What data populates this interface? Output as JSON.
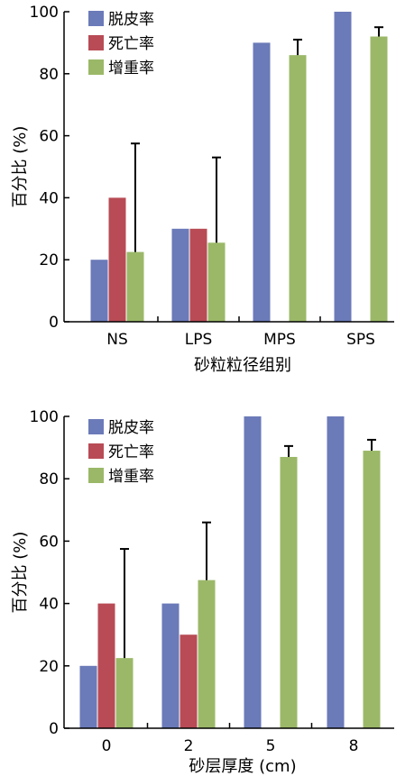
{
  "chart_data": [
    {
      "type": "bar",
      "categories": [
        "NS",
        "LPS",
        "MPS",
        "SPS"
      ],
      "xlabel": "砂粒粒径组别",
      "ylabel": "百分比 (%)",
      "ylim": [
        0,
        100
      ],
      "yticks": [
        0,
        20,
        40,
        60,
        80,
        100
      ],
      "grid": false,
      "legend_position": "top-left",
      "series": [
        {
          "name": "脱皮率",
          "color": "#6b7ab8",
          "values": [
            20,
            30,
            90,
            100
          ],
          "errors": [
            0,
            0,
            0,
            0
          ]
        },
        {
          "name": "死亡率",
          "color": "#b84b55",
          "values": [
            40,
            30,
            0,
            0
          ],
          "errors": [
            0,
            0,
            0,
            0
          ]
        },
        {
          "name": "增重率",
          "color": "#9bb868",
          "values": [
            22.5,
            25.5,
            86,
            92
          ],
          "errors": [
            35,
            27.5,
            5,
            3
          ]
        }
      ]
    },
    {
      "type": "bar",
      "categories": [
        "0",
        "2",
        "5",
        "8"
      ],
      "xlabel": "砂层厚度 (cm)",
      "ylabel": "百分比 (%)",
      "ylim": [
        0,
        100
      ],
      "yticks": [
        0,
        20,
        40,
        60,
        80,
        100
      ],
      "grid": false,
      "legend_position": "top-left",
      "series": [
        {
          "name": "脱皮率",
          "color": "#6b7ab8",
          "values": [
            20,
            40,
            100,
            100
          ],
          "errors": [
            0,
            0,
            0,
            0
          ]
        },
        {
          "name": "死亡率",
          "color": "#b84b55",
          "values": [
            40,
            30,
            0,
            0
          ],
          "errors": [
            0,
            0,
            0,
            0
          ]
        },
        {
          "name": "增重率",
          "color": "#9bb868",
          "values": [
            22.5,
            47.5,
            87,
            89
          ],
          "errors": [
            35,
            18.5,
            3.5,
            3.5
          ]
        }
      ]
    }
  ]
}
